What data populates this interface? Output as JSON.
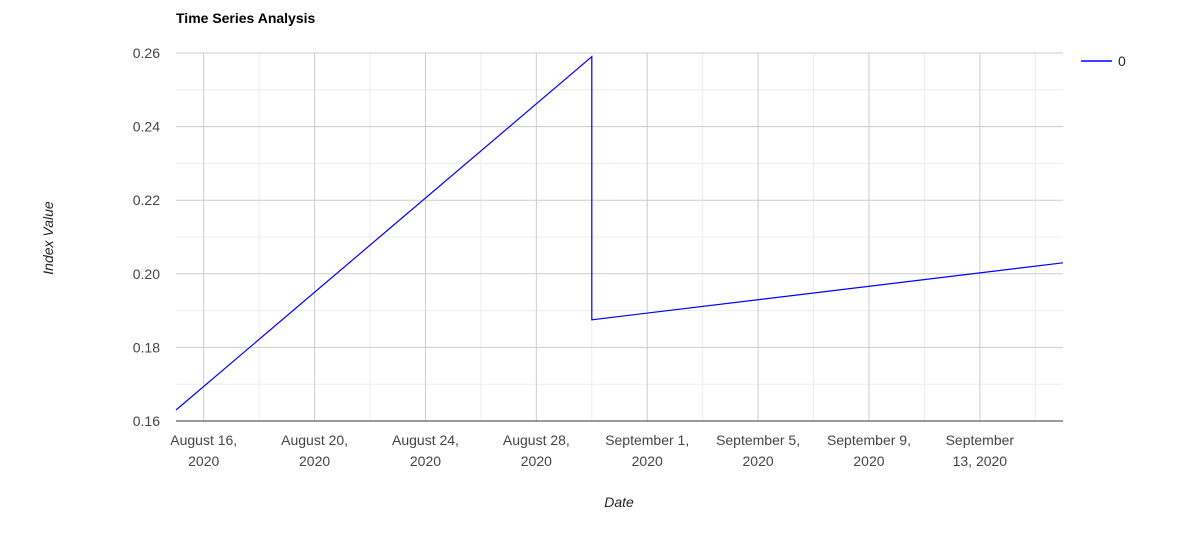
{
  "chart_data": {
    "type": "line",
    "title": "Time Series Analysis",
    "xlabel": "Date",
    "ylabel": "Index Value",
    "ylim": [
      0.16,
      0.26
    ],
    "xlim": [
      "2020-08-15",
      "2020-09-16"
    ],
    "yticks": [
      "0.16",
      "0.18",
      "0.20",
      "0.22",
      "0.24",
      "0.26"
    ],
    "xticks": [
      {
        "date": "2020-08-16",
        "lines": [
          "August 16,",
          "2020"
        ]
      },
      {
        "date": "2020-08-20",
        "lines": [
          "August 20,",
          "2020"
        ]
      },
      {
        "date": "2020-08-24",
        "lines": [
          "August 24,",
          "2020"
        ]
      },
      {
        "date": "2020-08-28",
        "lines": [
          "August 28,",
          "2020"
        ]
      },
      {
        "date": "2020-09-01",
        "lines": [
          "September 1,",
          "2020"
        ]
      },
      {
        "date": "2020-09-05",
        "lines": [
          "September 5,",
          "2020"
        ]
      },
      {
        "date": "2020-09-09",
        "lines": [
          "September 9,",
          "2020"
        ]
      },
      {
        "date": "2020-09-13",
        "lines": [
          "September",
          "13, 2020"
        ]
      }
    ],
    "grid": true,
    "legend_position": "right",
    "series": [
      {
        "name": "0",
        "color": "#0000ff",
        "points": [
          {
            "x": "2020-08-15",
            "y": 0.163
          },
          {
            "x": "2020-08-30",
            "y": 0.259
          },
          {
            "x": "2020-08-30",
            "y": 0.1875
          },
          {
            "x": "2020-09-16",
            "y": 0.203
          }
        ]
      }
    ]
  }
}
